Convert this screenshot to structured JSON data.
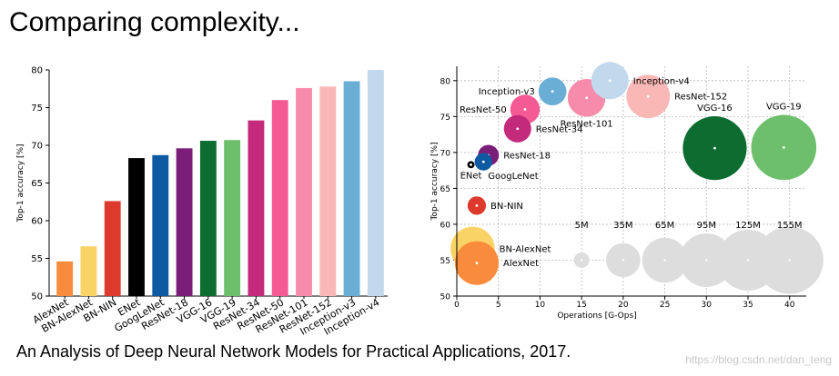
{
  "slide_title": "Comparing complexity...",
  "caption": "An Analysis of Deep Neural Network Models for Practical Applications, 2017.",
  "watermark": "https://blog.csdn.net/dan_teng",
  "chart_data": [
    {
      "type": "bar",
      "title": "",
      "xlabel": "",
      "ylabel": "Top-1 accuracy [%]",
      "ylim": [
        50,
        80
      ],
      "yticks": [
        50,
        55,
        60,
        65,
        70,
        75,
        80
      ],
      "categories": [
        "AlexNet",
        "BN-AlexNet",
        "BN-NIN",
        "ENet",
        "GoogLeNet",
        "ResNet-18",
        "VGG-16",
        "VGG-19",
        "ResNet-34",
        "ResNet-50",
        "ResNet-101",
        "ResNet-152",
        "Inception-v3",
        "Inception-v4"
      ],
      "values": [
        54.6,
        56.6,
        62.6,
        68.3,
        68.7,
        69.6,
        70.6,
        70.7,
        73.3,
        76.0,
        77.6,
        77.8,
        78.5,
        80.0
      ],
      "colors": [
        "#f98c3c",
        "#fad366",
        "#dd3a2d",
        "#000000",
        "#0d5aa3",
        "#7b1e7a",
        "#0d6d30",
        "#6dbf6b",
        "#c42a7b",
        "#f45b93",
        "#f78bab",
        "#f9b8b6",
        "#6aaed6",
        "#c2d8ec"
      ]
    },
    {
      "type": "scatter",
      "title": "",
      "xlabel": "Operations [G-Ops]",
      "ylabel": "Top-1 accuracy [%]",
      "xlim": [
        0,
        42
      ],
      "ylim": [
        50,
        82
      ],
      "xticks": [
        0,
        5,
        10,
        15,
        20,
        25,
        30,
        35,
        40
      ],
      "yticks": [
        50,
        55,
        60,
        65,
        70,
        75,
        80
      ],
      "grid": true,
      "points": [
        {
          "label": "AlexNet",
          "x": 2.4,
          "y": 54.6,
          "params_M": 61,
          "color": "#f98c3c",
          "label_side": "right"
        },
        {
          "label": "BN-AlexNet",
          "x": 1.9,
          "y": 56.6,
          "params_M": 62,
          "color": "#fad366",
          "label_side": "right"
        },
        {
          "label": "BN-NIN",
          "x": 2.4,
          "y": 62.6,
          "params_M": 8,
          "color": "#dd3a2d",
          "label_side": "right"
        },
        {
          "label": "ENet",
          "x": 1.7,
          "y": 68.3,
          "params_M": 0.4,
          "color": "#000000",
          "label_side": "below"
        },
        {
          "label": "GoogLeNet",
          "x": 3.2,
          "y": 68.7,
          "params_M": 7,
          "color": "#0d5aa3",
          "label_side": "below-right"
        },
        {
          "label": "ResNet-18",
          "x": 3.8,
          "y": 69.6,
          "params_M": 11,
          "color": "#7b1e7a",
          "label_side": "right"
        },
        {
          "label": "ResNet-34",
          "x": 7.3,
          "y": 73.3,
          "params_M": 21,
          "color": "#c42a7b",
          "label_side": "right"
        },
        {
          "label": "ResNet-50",
          "x": 8.2,
          "y": 76.0,
          "params_M": 25,
          "color": "#f45b93",
          "label_side": "left"
        },
        {
          "label": "Inception-v3",
          "x": 11.5,
          "y": 78.5,
          "params_M": 22,
          "color": "#6aaed6",
          "label_side": "left"
        },
        {
          "label": "ResNet-101",
          "x": 15.6,
          "y": 77.6,
          "params_M": 44,
          "color": "#f78bab",
          "label_side": "below"
        },
        {
          "label": "Inception-v4",
          "x": 18.4,
          "y": 80.0,
          "params_M": 43,
          "color": "#c2d8ec",
          "label_side": "right"
        },
        {
          "label": "ResNet-152",
          "x": 23.0,
          "y": 77.8,
          "params_M": 60,
          "color": "#f9b8b6",
          "label_side": "right"
        },
        {
          "label": "VGG-16",
          "x": 31.0,
          "y": 70.6,
          "params_M": 138,
          "color": "#0d6d30",
          "label_side": "above"
        },
        {
          "label": "VGG-19",
          "x": 39.3,
          "y": 70.7,
          "params_M": 144,
          "color": "#6dbf6b",
          "label_side": "above"
        }
      ],
      "size_legend": {
        "y": 55,
        "color": "#dddddd",
        "entries": [
          {
            "label": "5M",
            "x": 15.0,
            "params_M": 5
          },
          {
            "label": "35M",
            "x": 20.0,
            "params_M": 35
          },
          {
            "label": "65M",
            "x": 25.0,
            "params_M": 65
          },
          {
            "label": "95M",
            "x": 30.0,
            "params_M": 95
          },
          {
            "label": "125M",
            "x": 35.0,
            "params_M": 125
          },
          {
            "label": "155M",
            "x": 40.0,
            "params_M": 155
          }
        ]
      }
    }
  ]
}
